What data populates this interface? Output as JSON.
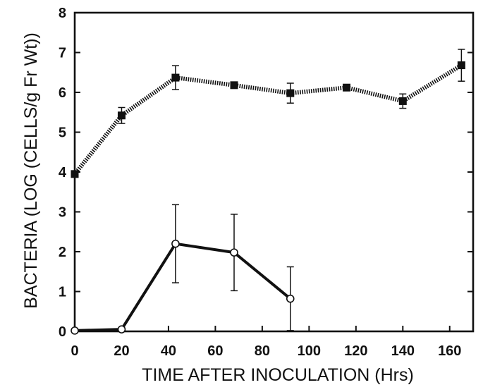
{
  "chart_data": {
    "type": "line",
    "title": "",
    "xlabel": "TIME AFTER INOCULATION (Hrs)",
    "ylabel": "BACTERIA (LOG (CELLS/g Fr Wt))",
    "xlim": [
      0,
      170
    ],
    "ylim": [
      0,
      8
    ],
    "xticks": [
      0,
      20,
      40,
      60,
      80,
      100,
      120,
      140,
      160
    ],
    "yticks": [
      0,
      1,
      2,
      3,
      4,
      5,
      6,
      7,
      8
    ],
    "grid": false,
    "legend": false,
    "series": [
      {
        "marker": "filled-square",
        "line_style": "dotted",
        "color": "#111111",
        "points": [
          {
            "x": 0,
            "y": 3.95,
            "err": null
          },
          {
            "x": 20,
            "y": 5.42,
            "err": 0.2
          },
          {
            "x": 43,
            "y": 6.37,
            "err": 0.3
          },
          {
            "x": 68,
            "y": 6.18,
            "err": null
          },
          {
            "x": 92,
            "y": 5.98,
            "err": 0.25
          },
          {
            "x": 116,
            "y": 6.12,
            "err": null
          },
          {
            "x": 140,
            "y": 5.78,
            "err": 0.18
          },
          {
            "x": 165,
            "y": 6.68,
            "err": 0.4
          }
        ]
      },
      {
        "marker": "open-circle",
        "line_style": "solid",
        "color": "#111111",
        "points": [
          {
            "x": 0,
            "y": 0.02,
            "err": null
          },
          {
            "x": 20,
            "y": 0.05,
            "err": null
          },
          {
            "x": 43,
            "y": 2.2,
            "err": 0.98
          },
          {
            "x": 68,
            "y": 1.98,
            "err": 0.96
          },
          {
            "x": 92,
            "y": 0.82,
            "err": 0.8
          }
        ]
      }
    ]
  }
}
